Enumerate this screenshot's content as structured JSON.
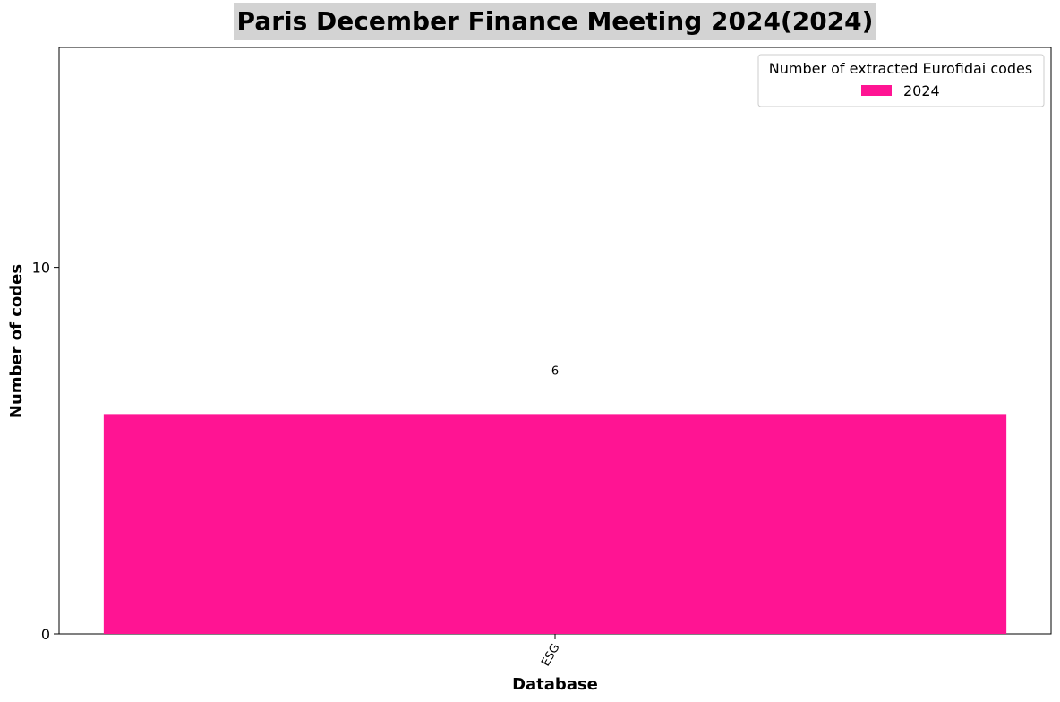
{
  "chart_data": {
    "type": "bar",
    "title": "Paris December Finance Meeting 2024(2024)",
    "xlabel": "Database",
    "ylabel": "Number of codes",
    "categories": [
      "ESG"
    ],
    "series": [
      {
        "name": "2024",
        "values": [
          6
        ],
        "color": "#ff1493"
      }
    ],
    "data_labels": [
      "6"
    ],
    "ylim": [
      0,
      16
    ],
    "yticks": [
      0,
      10
    ],
    "grid": false,
    "legend": {
      "title": "Number of extracted Eurofidai codes",
      "placement": "top-right"
    },
    "title_background": "#d3d3d3"
  }
}
